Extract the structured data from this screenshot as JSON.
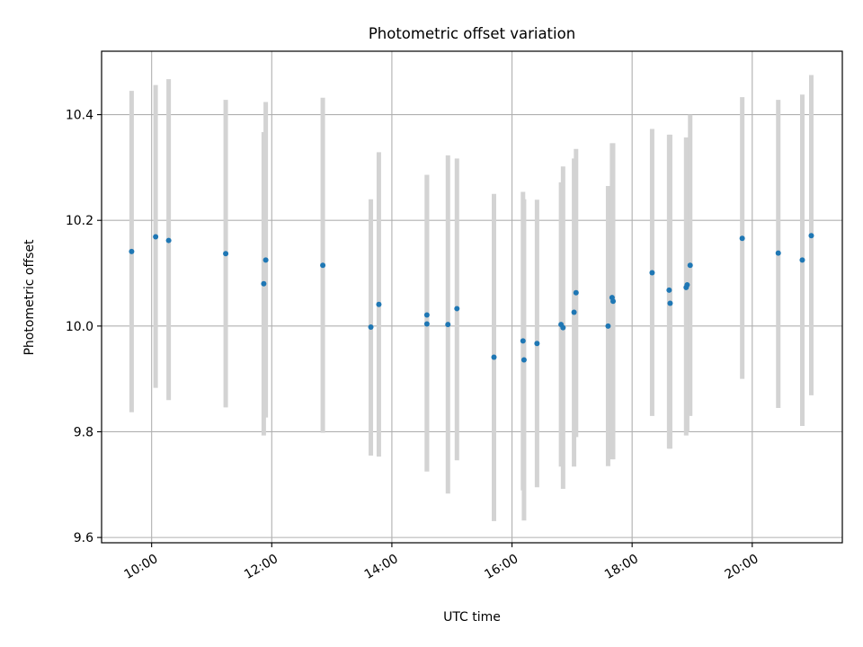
{
  "chart_data": {
    "type": "scatter",
    "title": "Photometric offset variation",
    "xlabel": "UTC time",
    "ylabel": "Photometric offset",
    "grid": true,
    "xlim": [
      "09:10",
      "21:30"
    ],
    "ylim": [
      9.59,
      10.52
    ],
    "x_ticks": [
      "10:00",
      "12:00",
      "14:00",
      "16:00",
      "18:00",
      "20:00"
    ],
    "y_ticks": [
      "9.6",
      "9.8",
      "10.0",
      "10.2",
      "10.4"
    ],
    "marker_color": "#1f77b4",
    "errorbar_color": "#d3d3d3",
    "points": [
      {
        "x": "09:40",
        "y": 10.141,
        "lo": 9.837,
        "hi": 10.445
      },
      {
        "x": "10:04",
        "y": 10.169,
        "lo": 9.883,
        "hi": 10.456
      },
      {
        "x": "10:17",
        "y": 10.162,
        "lo": 9.86,
        "hi": 10.467
      },
      {
        "x": "11:14",
        "y": 10.137,
        "lo": 9.846,
        "hi": 10.428
      },
      {
        "x": "11:52",
        "y": 10.08,
        "lo": 9.793,
        "hi": 10.367
      },
      {
        "x": "11:54",
        "y": 10.125,
        "lo": 9.827,
        "hi": 10.424
      },
      {
        "x": "12:51",
        "y": 10.115,
        "lo": 9.798,
        "hi": 10.432
      },
      {
        "x": "13:39",
        "y": 9.998,
        "lo": 9.755,
        "hi": 10.24
      },
      {
        "x": "13:47",
        "y": 10.041,
        "lo": 9.753,
        "hi": 10.329
      },
      {
        "x": "14:35",
        "y": 10.021,
        "lo": 9.725,
        "hi": 10.286
      },
      {
        "x": "14:35",
        "y": 10.004,
        "lo": 9.725,
        "hi": 10.286
      },
      {
        "x": "14:56",
        "y": 10.003,
        "lo": 9.683,
        "hi": 10.323
      },
      {
        "x": "15:05",
        "y": 10.033,
        "lo": 9.746,
        "hi": 10.317
      },
      {
        "x": "15:42",
        "y": 9.941,
        "lo": 9.631,
        "hi": 10.25
      },
      {
        "x": "16:11",
        "y": 9.972,
        "lo": 9.689,
        "hi": 10.254
      },
      {
        "x": "16:12",
        "y": 9.936,
        "lo": 9.632,
        "hi": 10.24
      },
      {
        "x": "16:25",
        "y": 9.967,
        "lo": 9.695,
        "hi": 10.239
      },
      {
        "x": "16:49",
        "y": 10.003,
        "lo": 9.734,
        "hi": 10.272
      },
      {
        "x": "16:51",
        "y": 9.997,
        "lo": 9.692,
        "hi": 10.302
      },
      {
        "x": "17:02",
        "y": 10.026,
        "lo": 9.734,
        "hi": 10.317
      },
      {
        "x": "17:04",
        "y": 10.063,
        "lo": 9.79,
        "hi": 10.335
      },
      {
        "x": "17:36",
        "y": 10.0,
        "lo": 9.735,
        "hi": 10.265
      },
      {
        "x": "17:40",
        "y": 10.054,
        "lo": 9.748,
        "hi": 10.346
      },
      {
        "x": "17:41",
        "y": 10.047,
        "lo": 9.748,
        "hi": 10.346
      },
      {
        "x": "18:20",
        "y": 10.101,
        "lo": 9.83,
        "hi": 10.373
      },
      {
        "x": "18:37",
        "y": 10.068,
        "lo": 9.768,
        "hi": 10.362
      },
      {
        "x": "18:38",
        "y": 10.043,
        "lo": 9.768,
        "hi": 10.362
      },
      {
        "x": "18:54",
        "y": 10.073,
        "lo": 9.793,
        "hi": 10.357
      },
      {
        "x": "18:55",
        "y": 10.078,
        "lo": 9.8,
        "hi": 10.33
      },
      {
        "x": "18:58",
        "y": 10.115,
        "lo": 9.83,
        "hi": 10.4
      },
      {
        "x": "19:50",
        "y": 10.166,
        "lo": 9.9,
        "hi": 10.433
      },
      {
        "x": "20:26",
        "y": 10.138,
        "lo": 9.845,
        "hi": 10.428
      },
      {
        "x": "20:50",
        "y": 10.125,
        "lo": 9.811,
        "hi": 10.438
      },
      {
        "x": "20:59",
        "y": 10.171,
        "lo": 9.869,
        "hi": 10.475
      }
    ]
  }
}
